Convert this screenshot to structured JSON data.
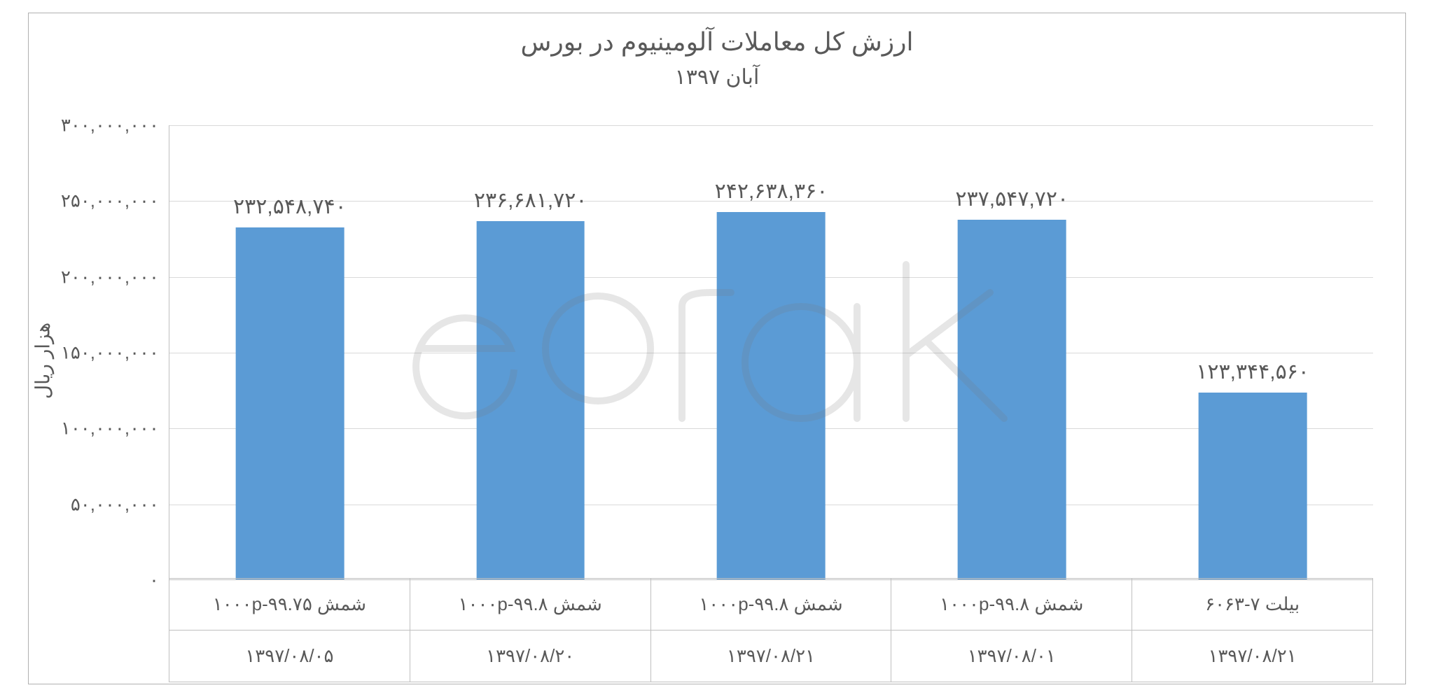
{
  "chart": {
    "type": "bar",
    "title": "ارزش کل معاملات آلومینیوم در بورس",
    "subtitle": "آبان ۱۳۹۷",
    "title_fontsize": 36,
    "subtitle_fontsize": 30,
    "title_color": "#595959",
    "y_axis_title": "هزار ریال",
    "y_axis_title_fontsize": 28,
    "background_color": "#ffffff",
    "border_color": "#b0b0b0",
    "grid_color": "#d9d9d9",
    "axis_color": "#bfbfbf",
    "text_color": "#595959",
    "bar_color": "#5b9bd5",
    "bar_width_pct": 45,
    "ylim": [
      0,
      300000000
    ],
    "ytick_step": 50000000,
    "y_ticks": [
      {
        "value": 0,
        "label": "۰"
      },
      {
        "value": 50000000,
        "label": "۵۰,۰۰۰,۰۰۰"
      },
      {
        "value": 100000000,
        "label": "۱۰۰,۰۰۰,۰۰۰"
      },
      {
        "value": 150000000,
        "label": "۱۵۰,۰۰۰,۰۰۰"
      },
      {
        "value": 200000000,
        "label": "۲۰۰,۰۰۰,۰۰۰"
      },
      {
        "value": 250000000,
        "label": "۲۵۰,۰۰۰,۰۰۰"
      },
      {
        "value": 300000000,
        "label": "۳۰۰,۰۰۰,۰۰۰"
      }
    ],
    "categories": [
      {
        "product": "شمش ۱۰۰۰p-۹۹.۷۵",
        "date": "۱۳۹۷/۰۸/۰۵",
        "value": 232548740,
        "label": "۲۳۲,۵۴۸,۷۴۰"
      },
      {
        "product": "شمش ۱۰۰۰p-۹۹.۸",
        "date": "۱۳۹۷/۰۸/۲۰",
        "value": 236681720,
        "label": "۲۳۶,۶۸۱,۷۲۰"
      },
      {
        "product": "شمش ۱۰۰۰p-۹۹.۸",
        "date": "۱۳۹۷/۰۸/۲۱",
        "value": 242638360,
        "label": "۲۴۲,۶۳۸,۳۶۰"
      },
      {
        "product": "شمش ۱۰۰۰p-۹۹.۸",
        "date": "۱۳۹۷/۰۸/۰۱",
        "value": 237547720,
        "label": "۲۳۷,۵۴۷,۷۲۰"
      },
      {
        "product": "بیلت ۷-۶۰۶۳",
        "date": "۱۳۹۷/۰۸/۲۱",
        "value": 123344560,
        "label": "۱۲۳,۳۴۴,۵۶۰"
      }
    ],
    "label_fontsize": 26,
    "data_label_fontsize": 30,
    "watermark_text": "eirak",
    "watermark_color": "#000000",
    "watermark_opacity": 0.18
  }
}
